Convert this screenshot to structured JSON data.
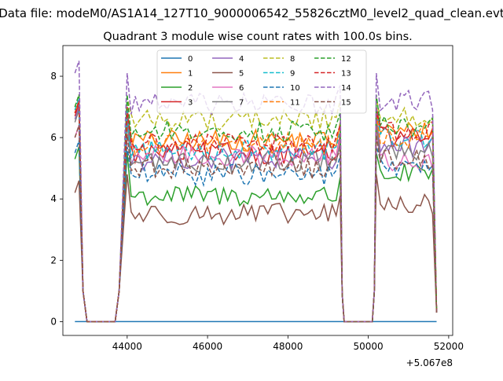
{
  "figure": {
    "suptitle": "Data file: modeM0/AS1A14_127T10_9000006542_55826cztM0_level2_quad_clean.evt",
    "title": "Quadrant 3 module wise count rates with 100.0s bins."
  },
  "chart_data": {
    "type": "line",
    "title": "Quadrant 3 module wise count rates with 100.0s bins.",
    "xlabel": "",
    "ylabel": "",
    "x_offset_label": "+5.067e8",
    "xlim": [
      42400,
      52100
    ],
    "ylim": [
      -0.45,
      9.0
    ],
    "xticks": [
      44000,
      46000,
      48000,
      50000,
      52000
    ],
    "xtick_labels": [
      "44000",
      "46000",
      "48000",
      "50000",
      "52000"
    ],
    "yticks": [
      0,
      2,
      4,
      6,
      8
    ],
    "ytick_labels": [
      "0",
      "2",
      "4",
      "6",
      "8"
    ],
    "grid": false,
    "legend_position": "top-center",
    "legend_columns": 4,
    "segments": [
      {
        "x_start": 42700,
        "x_end": 42800,
        "x_step": 100
      },
      {
        "x_start": 43900,
        "x_end": 44000,
        "x_step": 100
      },
      {
        "x_start": 44100,
        "x_end": 49200,
        "x_step": 100
      },
      {
        "x_start": 49300,
        "x_end": 49300,
        "x_step": 100
      },
      {
        "x_start": 50200,
        "x_end": 51600,
        "x_step": 100
      }
    ],
    "zero_points_x": [
      43000,
      43200,
      43400,
      43600,
      43700,
      49400,
      49500,
      49700,
      49900,
      50100
    ],
    "low_points": [
      {
        "x": 42900,
        "y": 1.0
      },
      {
        "x": 43800,
        "y": 1.0
      },
      {
        "x": 49350,
        "y": 0.9
      },
      {
        "x": 50150,
        "y": 1.0
      },
      {
        "x": 51700,
        "y": 0.3
      }
    ],
    "series": [
      {
        "name": "0",
        "color": "#1f77b4",
        "dash": "solid",
        "level": 0.0,
        "first": 0.0,
        "early": 0.0,
        "late": 0.0
      },
      {
        "name": "1",
        "color": "#ff7f0e",
        "dash": "solid",
        "level": 5.9,
        "first": 6.8,
        "early": 6.9,
        "late": 6.2
      },
      {
        "name": "2",
        "color": "#2ca02c",
        "dash": "solid",
        "level": 4.1,
        "first": 5.3,
        "early": 5.5,
        "late": 4.8
      },
      {
        "name": "3",
        "color": "#d62728",
        "dash": "solid",
        "level": 5.5,
        "first": 6.7,
        "early": 7.0,
        "late": 6.0
      },
      {
        "name": "4",
        "color": "#9467bd",
        "dash": "solid",
        "level": 5.3,
        "first": 6.6,
        "early": 6.8,
        "late": 5.7
      },
      {
        "name": "5",
        "color": "#8c564b",
        "dash": "solid",
        "level": 3.5,
        "first": 4.2,
        "early": 4.8,
        "late": 3.8
      },
      {
        "name": "6",
        "color": "#e377c2",
        "dash": "solid",
        "level": 5.4,
        "first": 6.0,
        "early": 6.0,
        "late": 5.2
      },
      {
        "name": "7",
        "color": "#7f7f7f",
        "dash": "solid",
        "level": 5.2,
        "first": 6.5,
        "early": 6.5,
        "late": 5.5
      },
      {
        "name": "8",
        "color": "#bcbd22",
        "dash": "dashed",
        "level": 6.6,
        "first": 7.0,
        "early": 7.3,
        "late": 6.7
      },
      {
        "name": "9",
        "color": "#17becf",
        "dash": "dashed",
        "level": 5.6,
        "first": 6.9,
        "early": 6.9,
        "late": 6.0
      },
      {
        "name": "10",
        "color": "#1f77b4",
        "dash": "dashed",
        "level": 4.8,
        "first": 5.5,
        "early": 5.7,
        "late": 5.0
      },
      {
        "name": "11",
        "color": "#ff7f0e",
        "dash": "dashed",
        "level": 5.8,
        "first": 6.8,
        "early": 6.8,
        "late": 6.0
      },
      {
        "name": "12",
        "color": "#2ca02c",
        "dash": "dashed",
        "level": 6.2,
        "first": 7.0,
        "early": 7.4,
        "late": 6.4
      },
      {
        "name": "13",
        "color": "#d62728",
        "dash": "dashed",
        "level": 5.8,
        "first": 6.8,
        "early": 6.8,
        "late": 6.2
      },
      {
        "name": "14",
        "color": "#9467bd",
        "dash": "dashed",
        "level": 7.1,
        "first": 8.1,
        "early": 8.1,
        "late": 7.2
      },
      {
        "name": "15",
        "color": "#8c564b",
        "dash": "dashed",
        "level": 5.0,
        "first": 6.0,
        "early": 6.1,
        "late": 5.3
      }
    ]
  }
}
